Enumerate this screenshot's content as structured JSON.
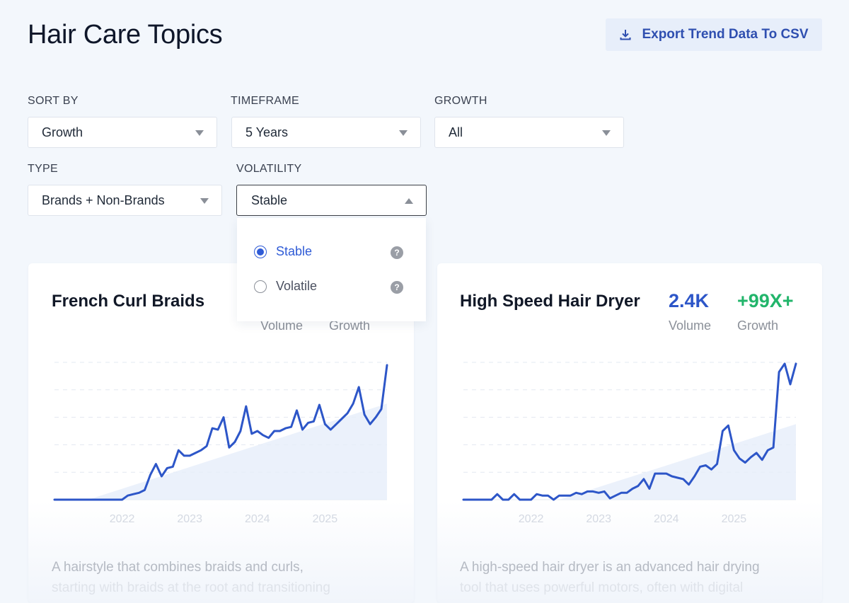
{
  "page_title": "Hair Care Topics",
  "export_button": {
    "label": "Export Trend Data To CSV",
    "icon": "download-icon"
  },
  "filters": {
    "sort_by": {
      "label": "SORT BY",
      "value": "Growth"
    },
    "timeframe": {
      "label": "TIMEFRAME",
      "value": "5 Years"
    },
    "growth": {
      "label": "GROWTH",
      "value": "All"
    },
    "type": {
      "label": "TYPE",
      "value": "Brands + Non-Brands"
    },
    "volatility": {
      "label": "VOLATILITY",
      "value": "Stable",
      "open": true,
      "options": [
        {
          "label": "Stable",
          "selected": true
        },
        {
          "label": "Volatile",
          "selected": false
        }
      ]
    }
  },
  "colors": {
    "accent": "#2f5bd6",
    "line": "#2d56c8",
    "growth_green": "#22b56b",
    "background": "#f3f7fc"
  },
  "cards": [
    {
      "title": "French Curl Braids",
      "volume_label": "Volume",
      "growth_label": "Growth",
      "description_line1": "A hairstyle that combines braids and curls,",
      "description_line2": "starting with braids at the root and transitioning"
    },
    {
      "title": "High Speed Hair Dryer",
      "volume": "2.4K",
      "volume_label": "Volume",
      "growth": "+99X+",
      "growth_label": "Growth",
      "description_line1": "A high-speed hair dryer is an advanced hair drying",
      "description_line2": "tool that uses powerful motors, often with digital"
    }
  ],
  "chart_data": [
    {
      "type": "line",
      "title": "French Curl Braids",
      "x_start": "2021-01",
      "x_end": "2025-12",
      "x_step": "month",
      "x_ticks": [
        "2022",
        "2023",
        "2024",
        "2025"
      ],
      "ylim": [
        0,
        100
      ],
      "grid": true,
      "values": [
        0,
        0,
        0,
        0,
        0,
        0,
        0,
        0,
        0,
        0,
        0,
        0,
        0,
        3,
        4,
        5,
        7,
        18,
        26,
        17,
        23,
        24,
        36,
        32,
        32,
        34,
        36,
        39,
        52,
        51,
        60,
        38,
        42,
        50,
        68,
        48,
        50,
        47,
        45,
        50,
        50,
        52,
        53,
        65,
        51,
        56,
        57,
        69,
        55,
        51,
        55,
        59,
        63,
        70,
        82,
        62,
        55,
        60,
        66,
        98
      ],
      "trend": {
        "start": "2021-07",
        "start_value": 0,
        "end_value": 70
      }
    },
    {
      "type": "line",
      "title": "High Speed Hair Dryer",
      "x_start": "2021-01",
      "x_end": "2025-12",
      "x_step": "month",
      "x_ticks": [
        "2022",
        "2023",
        "2024",
        "2025"
      ],
      "ylim": [
        0,
        100
      ],
      "grid": true,
      "values": [
        0,
        0,
        0,
        0,
        0,
        0,
        4,
        0,
        0,
        4,
        0,
        0,
        0,
        4,
        3,
        3,
        0,
        3,
        3,
        3,
        5,
        4,
        6,
        6,
        5,
        6,
        1,
        3,
        5,
        5,
        8,
        10,
        15,
        8,
        19,
        19,
        19,
        17,
        16,
        15,
        11,
        17,
        24,
        25,
        22,
        26,
        50,
        54,
        36,
        30,
        27,
        31,
        34,
        29,
        36,
        38,
        93,
        99,
        84,
        99
      ],
      "trend": {
        "start": "2022-06",
        "start_value": 0,
        "end_value": 55
      }
    }
  ]
}
